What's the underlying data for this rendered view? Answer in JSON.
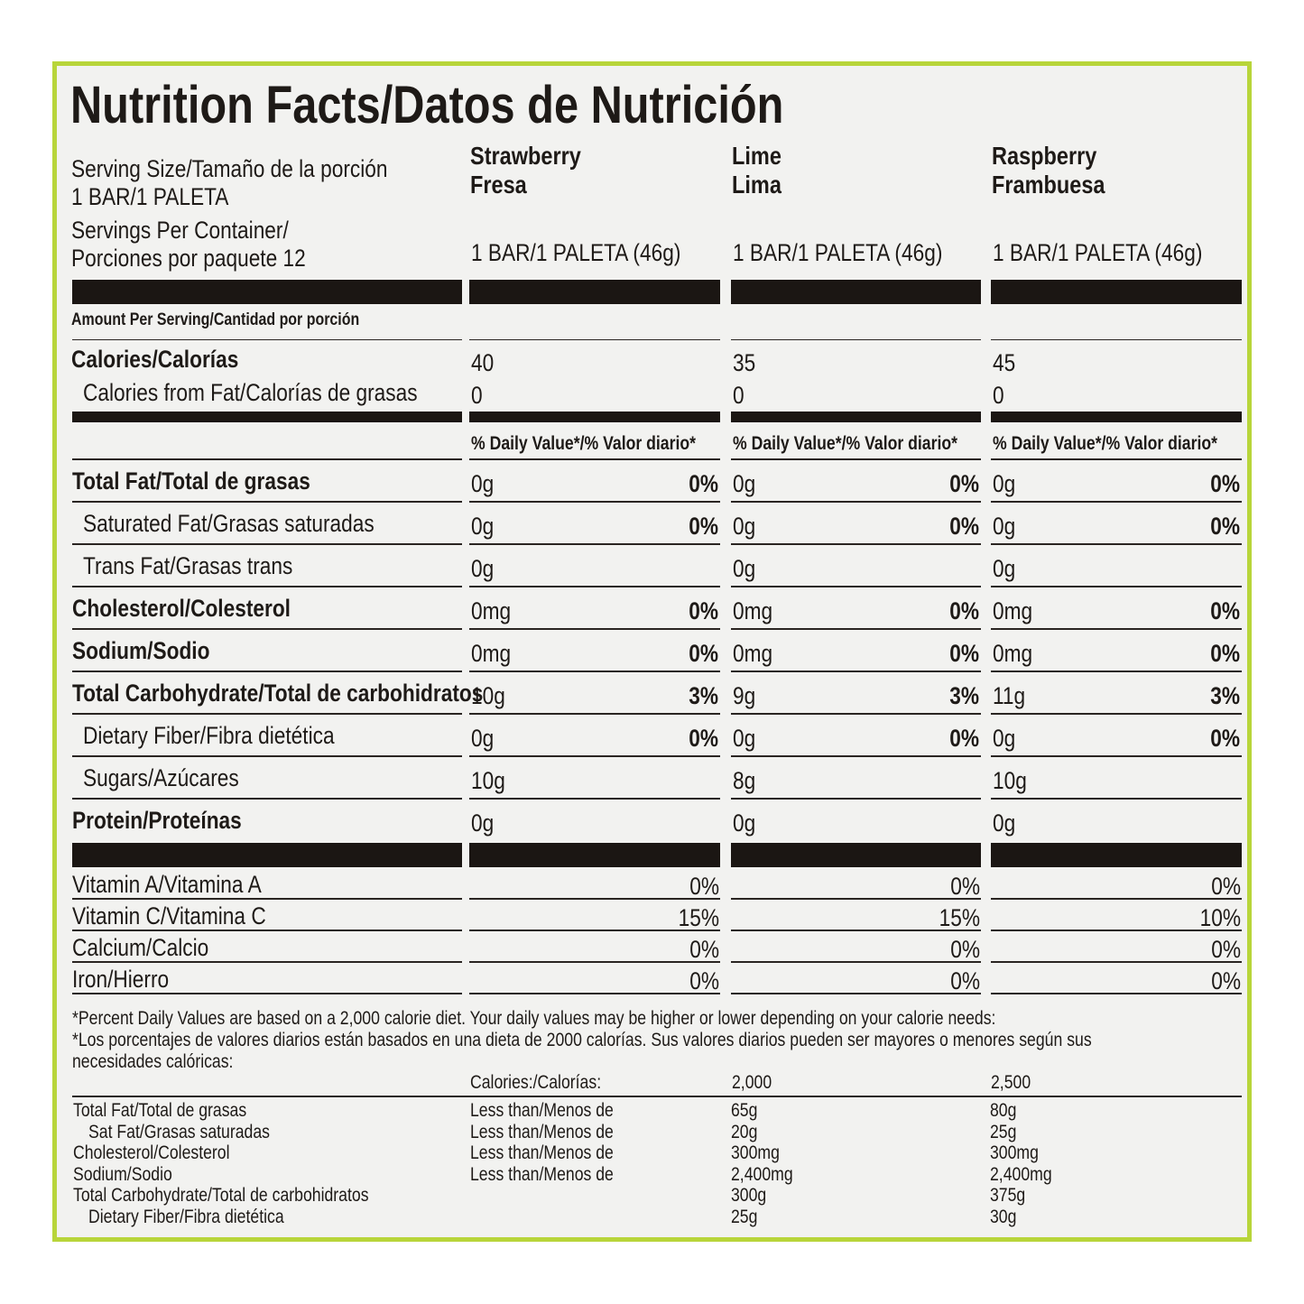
{
  "title": "Nutrition Facts/Datos de Nutrición",
  "serving": {
    "size_label": "Serving Size/Tamaño de la porción",
    "size_value": "1 BAR/1 PALETA",
    "per_container_1": "Servings Per Container/",
    "per_container_2": "Porciones por paquete 12"
  },
  "flavors": [
    {
      "name_en": "Strawberry",
      "name_es": "Fresa",
      "serving": "1 BAR/1 PALETA (46g)"
    },
    {
      "name_en": "Lime",
      "name_es": "Lima",
      "serving": "1 BAR/1 PALETA (46g)"
    },
    {
      "name_en": "Raspberry",
      "name_es": "Frambuesa",
      "serving": "1 BAR/1 PALETA (46g)"
    }
  ],
  "amount_per_serving": "Amount Per Serving/Cantidad por porción",
  "calories": {
    "label": "Calories/Calorías",
    "values": [
      "40",
      "35",
      "45"
    ]
  },
  "calories_fat": {
    "label": "Calories from Fat/Calorías de grasas",
    "values": [
      "0",
      "0",
      "0"
    ]
  },
  "dv_header": "% Daily Value*/% Valor diario*",
  "nutrients": [
    {
      "label": "Total Fat/Total de grasas",
      "bold": true,
      "indent": false,
      "values": [
        [
          "0g",
          "0%"
        ],
        [
          "0g",
          "0%"
        ],
        [
          "0g",
          "0%"
        ]
      ]
    },
    {
      "label": "Saturated Fat/Grasas saturadas",
      "bold": false,
      "indent": true,
      "values": [
        [
          "0g",
          "0%"
        ],
        [
          "0g",
          "0%"
        ],
        [
          "0g",
          "0%"
        ]
      ]
    },
    {
      "label": "Trans Fat/Grasas trans",
      "bold": false,
      "indent": true,
      "values": [
        [
          "0g",
          ""
        ],
        [
          "0g",
          ""
        ],
        [
          "0g",
          ""
        ]
      ]
    },
    {
      "label": "Cholesterol/Colesterol",
      "bold": true,
      "indent": false,
      "values": [
        [
          "0mg",
          "0%"
        ],
        [
          "0mg",
          "0%"
        ],
        [
          "0mg",
          "0%"
        ]
      ]
    },
    {
      "label": "Sodium/Sodio",
      "bold": true,
      "indent": false,
      "values": [
        [
          "0mg",
          "0%"
        ],
        [
          "0mg",
          "0%"
        ],
        [
          "0mg",
          "0%"
        ]
      ]
    },
    {
      "label": "Total Carbohydrate/Total de carbohidratos",
      "bold": true,
      "indent": false,
      "values": [
        [
          "10g",
          "3%"
        ],
        [
          "9g",
          "3%"
        ],
        [
          "11g",
          "3%"
        ]
      ]
    },
    {
      "label": "Dietary Fiber/Fibra dietética",
      "bold": false,
      "indent": true,
      "values": [
        [
          "0g",
          "0%"
        ],
        [
          "0g",
          "0%"
        ],
        [
          "0g",
          "0%"
        ]
      ]
    },
    {
      "label": "Sugars/Azúcares",
      "bold": false,
      "indent": true,
      "values": [
        [
          "10g",
          ""
        ],
        [
          "8g",
          ""
        ],
        [
          "10g",
          ""
        ]
      ]
    },
    {
      "label": "Protein/Proteínas",
      "bold": true,
      "indent": false,
      "values": [
        [
          "0g",
          ""
        ],
        [
          "0g",
          ""
        ],
        [
          "0g",
          ""
        ]
      ]
    }
  ],
  "vitamins": [
    {
      "label": "Vitamin A/Vitamina A",
      "values": [
        "0%",
        "0%",
        "0%"
      ]
    },
    {
      "label": "Vitamin C/Vitamina C",
      "values": [
        "15%",
        "15%",
        "10%"
      ]
    },
    {
      "label": "Calcium/Calcio",
      "values": [
        "0%",
        "0%",
        "0%"
      ]
    },
    {
      "label": "Iron/Hierro",
      "values": [
        "0%",
        "0%",
        "0%"
      ]
    }
  ],
  "footnote": {
    "line1": "*Percent Daily Values are based on a 2,000 calorie diet. Your daily values may be higher or lower depending on your calorie needs:",
    "line2": "*Los porcentajes de valores diarios están basados en una dieta de 2000 calorías. Sus valores diarios pueden ser mayores o menores según sus",
    "line3": "necesidades calóricas:",
    "calories_label": "Calories:/Calorías:",
    "col_2000": "2,000",
    "col_2500": "2,500",
    "rows": [
      {
        "label": "Total Fat/Total de grasas",
        "indent": false,
        "qualifier": "Less than/Menos de",
        "v2000": "65g",
        "v2500": "80g"
      },
      {
        "label": "Sat Fat/Grasas saturadas",
        "indent": true,
        "qualifier": "Less than/Menos de",
        "v2000": "20g",
        "v2500": "25g"
      },
      {
        "label": "Cholesterol/Colesterol",
        "indent": false,
        "qualifier": "Less than/Menos de",
        "v2000": "300mg",
        "v2500": "300mg"
      },
      {
        "label": "Sodium/Sodio",
        "indent": false,
        "qualifier": "Less than/Menos de",
        "v2000": "2,400mg",
        "v2500": "2,400mg"
      },
      {
        "label": "Total Carbohydrate/Total de carbohidratos",
        "indent": false,
        "qualifier": "",
        "v2000": "300g",
        "v2500": "375g"
      },
      {
        "label": "Dietary Fiber/Fibra dietética",
        "indent": true,
        "qualifier": "",
        "v2000": "25g",
        "v2500": "30g"
      }
    ]
  },
  "colors": {
    "border": "#b8d53a",
    "ink": "#1b1613",
    "panel": "#f2f2f0"
  }
}
